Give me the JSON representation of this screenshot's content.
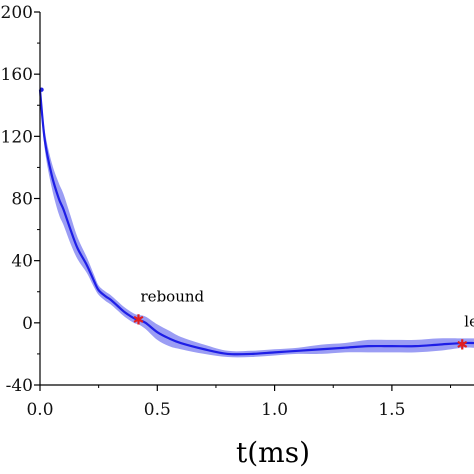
{
  "chart_data": {
    "type": "line",
    "title": "",
    "xlabel": "t(ms)",
    "ylabel": "",
    "xlim": [
      0,
      1.85
    ],
    "ylim": [
      -40,
      200
    ],
    "grid": false,
    "xticks": [
      0.0,
      0.5,
      1.0,
      1.5
    ],
    "xtick_labels": [
      "0.0",
      "0.5",
      "1.0",
      "1.5"
    ],
    "yticks": [
      -40,
      0,
      40,
      80,
      120,
      160,
      200
    ],
    "ytick_labels": [
      "-40",
      "0",
      "40",
      "80",
      "120",
      "160",
      "200"
    ],
    "colors": {
      "line": "#1e1ee6",
      "band": "#7a7cf0",
      "marker": "#e02020",
      "axis": "#000000"
    },
    "series": [
      {
        "x": [
          0.0,
          0.02,
          0.05,
          0.08,
          0.1,
          0.13,
          0.16,
          0.2,
          0.23,
          0.25,
          0.28,
          0.3,
          0.33,
          0.36,
          0.4,
          0.42,
          0.45,
          0.5,
          0.55,
          0.6,
          0.7,
          0.8,
          0.9,
          1.0,
          1.1,
          1.2,
          1.3,
          1.4,
          1.5,
          1.6,
          1.7,
          1.8,
          1.85
        ],
        "y": [
          150,
          118,
          95,
          80,
          73,
          60,
          48,
          37,
          27,
          21,
          17,
          15,
          11,
          7,
          3,
          2,
          0,
          -6,
          -10,
          -13,
          -17,
          -20,
          -20,
          -19,
          -18,
          -17,
          -16,
          -15,
          -15,
          -15,
          -14,
          -13,
          -13
        ],
        "band": [
          3,
          6,
          8,
          10,
          10,
          9,
          7,
          5,
          4,
          3,
          3,
          3,
          3,
          3,
          3,
          3,
          4,
          5,
          5,
          4,
          3,
          2,
          2,
          2,
          2,
          3,
          3,
          4,
          4,
          4,
          4,
          3,
          3
        ]
      }
    ],
    "annotations": [
      {
        "text": "rebound",
        "x": 0.42,
        "y": 2
      },
      {
        "text": "leave",
        "x": 1.8,
        "y": -14
      }
    ]
  }
}
